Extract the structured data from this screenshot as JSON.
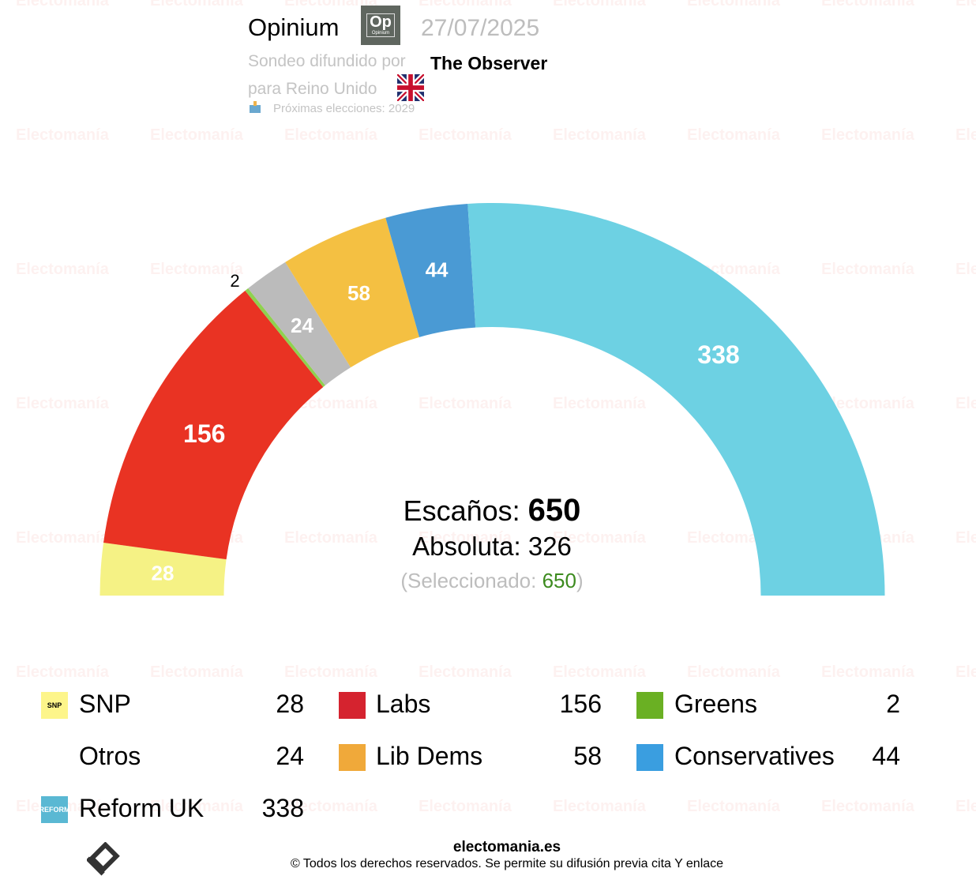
{
  "header": {
    "pollster": "Opinium",
    "pollster_logo_text": "Op",
    "pollster_logo_subtext": "Opinium",
    "date": "27/07/2025",
    "published_by_label": "Sondeo difundido por",
    "publisher": "The Observer",
    "region_label": "para Reino Unido",
    "next_elections": "Próximas elecciones: 2029"
  },
  "center": {
    "seats_label": "Escaños:",
    "seats_total": "650",
    "majority_label": "Absoluta: 326",
    "selected_prefix": "(Seleccionado: ",
    "selected_value": "650",
    "selected_suffix": ")"
  },
  "chart_data": {
    "type": "pie",
    "subtype": "hemicycle",
    "total": 650,
    "majority": 326,
    "series": [
      {
        "name": "SNP",
        "value": 28,
        "color": "#f5f285"
      },
      {
        "name": "Labs",
        "value": 156,
        "color": "#e93323"
      },
      {
        "name": "Greens",
        "value": 2,
        "color": "#8fd14f"
      },
      {
        "name": "Otros",
        "value": 24,
        "color": "#bbbbbb"
      },
      {
        "name": "Lib Dems",
        "value": 58,
        "color": "#f4c042"
      },
      {
        "name": "Conservatives",
        "value": 44,
        "color": "#4a9ad4"
      },
      {
        "name": "Reform UK",
        "value": 338,
        "color": "#6dd1e3"
      }
    ]
  },
  "legend": [
    {
      "name": "SNP",
      "value": "28",
      "icon": "snp-logo-icon",
      "icon_text": "SNP",
      "color": "#fdf58a"
    },
    {
      "name": "Labs",
      "value": "156",
      "icon": "labour-rose-icon",
      "icon_text": "",
      "color": "#d5232f"
    },
    {
      "name": "Greens",
      "value": "2",
      "icon": "greens-logo-icon",
      "icon_text": "",
      "color": "#6ab023"
    },
    {
      "name": "Otros",
      "value": "24",
      "icon": "",
      "icon_text": "",
      "color": ""
    },
    {
      "name": "Lib Dems",
      "value": "58",
      "icon": "libdem-bird-icon",
      "icon_text": "",
      "color": "#f0a93a"
    },
    {
      "name": "Conservatives",
      "value": "44",
      "icon": "conservative-tree-icon",
      "icon_text": "",
      "color": "#3a9ee0"
    },
    {
      "name": "Reform UK",
      "value": "338",
      "icon": "reform-arrow-icon",
      "icon_text": "REFORM",
      "color": "#5ab8d3"
    }
  ],
  "footer": {
    "site": "electomania.es",
    "copyright": "© Todos los derechos reservados. Se permite su difusión previa cita Y enlace"
  },
  "watermark": "Electomanía"
}
